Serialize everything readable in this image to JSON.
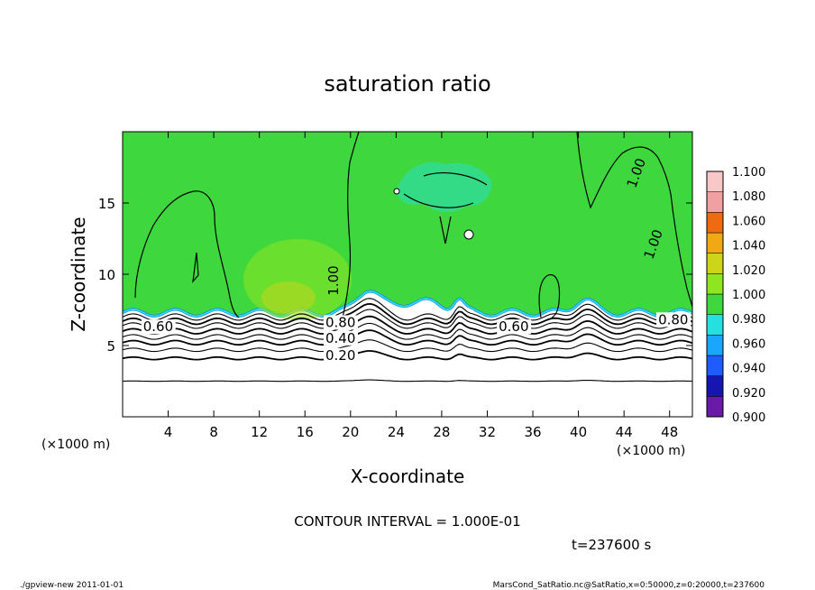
{
  "chart_data": {
    "type": "heatmap",
    "title": "saturation ratio",
    "xlabel": "X-coordinate",
    "ylabel": "Z-coordinate",
    "x_unit": "(×1000 m)",
    "y_unit": "(×1000 m)",
    "xlim": [
      0,
      50
    ],
    "ylim": [
      0,
      20
    ],
    "x_ticks": [
      4,
      8,
      12,
      16,
      20,
      24,
      28,
      32,
      36,
      40,
      44,
      48
    ],
    "y_ticks": [
      5,
      10,
      15
    ],
    "colorbar": {
      "levels": [
        0.9,
        0.92,
        0.94,
        0.96,
        0.98,
        1.0,
        1.02,
        1.04,
        1.06,
        1.08,
        1.1
      ],
      "labels": [
        "0.900",
        "0.920",
        "0.940",
        "0.960",
        "0.980",
        "1.000",
        "1.020",
        "1.040",
        "1.060",
        "1.080",
        "1.100"
      ],
      "colors": [
        "#6a1aa8",
        "#1515b0",
        "#1e5cff",
        "#1aa6ff",
        "#26e0e0",
        "#3ed83e",
        "#8fe620",
        "#ccd51a",
        "#f0a814",
        "#f06a10",
        "#f0a0a0",
        "#f8c8c8"
      ]
    },
    "field_color": "#3ed83e",
    "contours": [
      {
        "level": 0.2,
        "label": "0.20",
        "label_x": 17.8,
        "label_z": 4.0
      },
      {
        "level": 0.4,
        "label": "0.40",
        "label_x": 17.8,
        "label_z": 5.2
      },
      {
        "level": 0.6,
        "label": "0.60",
        "label_x": 1.8,
        "label_z": 6.0
      },
      {
        "level": 0.6,
        "label": "0.60",
        "label_x": 33.0,
        "label_z": 6.0
      },
      {
        "level": 0.8,
        "label": "0.80",
        "label_x": 17.8,
        "label_z": 6.3
      },
      {
        "level": 0.8,
        "label": "0.80",
        "label_x": 47.0,
        "label_z": 6.5
      },
      {
        "level": 1.0,
        "label": "1.00",
        "label_x": 18.9,
        "label_z": 8.5
      },
      {
        "level": 1.0,
        "label": "1.00",
        "label_x": 46.5,
        "label_z": 11.0
      },
      {
        "level": 1.0,
        "label": "1.00",
        "label_x": 45.0,
        "label_z": 16.0
      }
    ],
    "contour_interval": "CONTOUR INTERVAL = 1.000E-01",
    "time_label": "t=237600 s"
  },
  "footer": {
    "left": "./gpview-new 2011-01-01",
    "right": "MarsCond_SatRatio.nc@SatRatio,x=0:50000,z=0:20000,t=237600"
  }
}
